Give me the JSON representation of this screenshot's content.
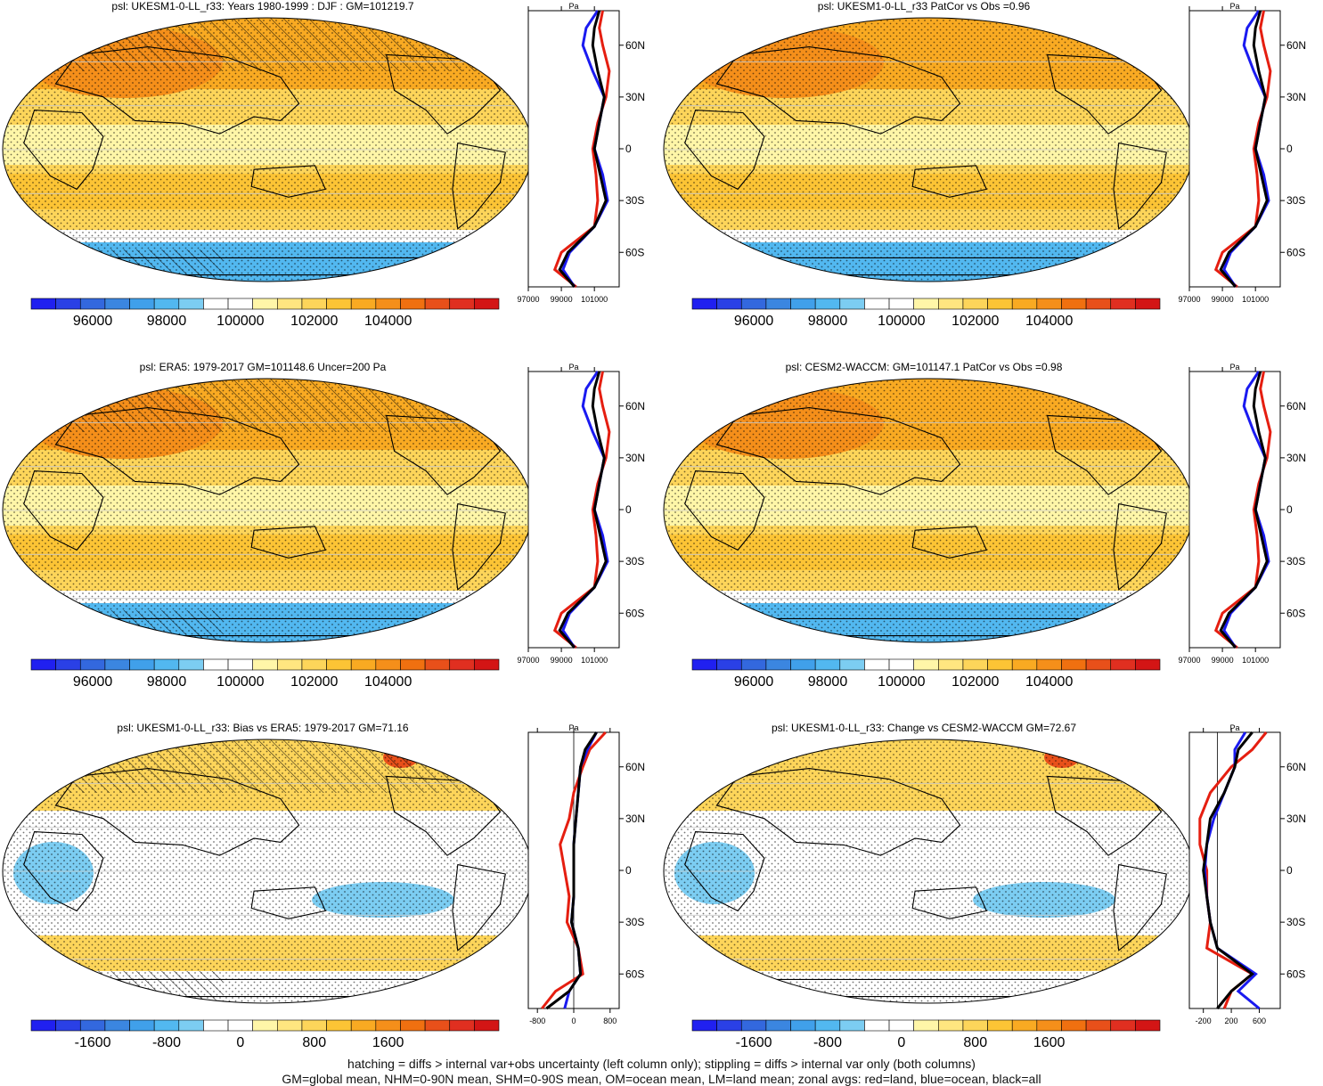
{
  "panels": [
    {
      "title": "psl: UKESM1-0-LL_r33: Years 1980-1999 : DJF : GM=101219.7",
      "scale": "abs",
      "hatch": true,
      "stipple": true
    },
    {
      "title": "psl: UKESM1-0-LL_r33 PatCor vs Obs =0.96",
      "scale": "abs",
      "hatch": false,
      "stipple": true
    },
    {
      "title": "psl: ERA5: 1979-2017 GM=101148.6 Uncer=200 Pa",
      "scale": "abs",
      "hatch": true,
      "stipple": true
    },
    {
      "title": "psl: CESM2-WACCM: GM=101147.1 PatCor vs Obs =0.98",
      "scale": "abs",
      "hatch": false,
      "stipple": true
    },
    {
      "title": "psl: UKESM1-0-LL_r33: Bias vs ERA5: 1979-2017 GM=71.16",
      "scale": "diff",
      "hatch": true,
      "stipple": true
    },
    {
      "title": "psl: UKESM1-0-LL_r33: Change vs CESM2-WACCM GM=72.67",
      "scale": "diff",
      "hatch": false,
      "stipple": true
    }
  ],
  "zonal": {
    "unit": "Pa",
    "lat_ticks": [
      "60N",
      "30N",
      "0",
      "30S",
      "60S"
    ],
    "abs_ticks": [
      "97000",
      "99000",
      "101000"
    ],
    "diff_left_ticks": [
      "-800",
      "0",
      "800"
    ],
    "diff_right_ticks": [
      "-200",
      "200",
      "600"
    ],
    "legend": {
      "land": "#e51e10",
      "ocean": "#1a1af0",
      "all": "#000000"
    }
  },
  "colorbar": {
    "abs_labels": [
      "96000",
      "98000",
      "100000",
      "102000",
      "104000"
    ],
    "diff_labels": [
      "-1600",
      "-800",
      "0",
      "800",
      "1600"
    ],
    "colors": [
      "#2020f0",
      "#2a40e6",
      "#3368de",
      "#3b86e0",
      "#40a0ea",
      "#52b8f0",
      "#7ccdf2",
      "#ffffff",
      "#ffffff",
      "#fff6a8",
      "#ffe680",
      "#fdd55a",
      "#fcc435",
      "#f9aa22",
      "#f58f1a",
      "#f07010",
      "#e8501a",
      "#e02f20",
      "#d31515"
    ]
  },
  "chart_data": {
    "type": "heatmap",
    "variable": "psl",
    "series_zonal": [
      {
        "name": "land",
        "color": "#e51e10"
      },
      {
        "name": "ocean",
        "color": "#1a1af0"
      },
      {
        "name": "all",
        "color": "#000000"
      }
    ],
    "zonal_abs_lat": [
      80,
      70,
      60,
      45,
      30,
      15,
      0,
      -15,
      -30,
      -45,
      -60,
      -70,
      -80
    ],
    "zonal_abs_all": [
      101300,
      101000,
      100900,
      101200,
      101600,
      101300,
      101000,
      101350,
      101700,
      101000,
      99400,
      98900,
      99800
    ],
    "zonal_abs_land": [
      101500,
      101300,
      101500,
      101900,
      101700,
      101200,
      100900,
      101100,
      101200,
      101000,
      99000,
      98600,
      99900
    ],
    "zonal_abs_ocean": [
      101200,
      100500,
      100300,
      100900,
      101600,
      101300,
      101000,
      101500,
      101800,
      101000,
      99500,
      99100,
      99800
    ],
    "zonal_bias_all": [
      500,
      250,
      150,
      100,
      50,
      0,
      0,
      0,
      -50,
      100,
      150,
      -100,
      -600
    ],
    "zonal_bias_land": [
      700,
      350,
      200,
      0,
      -100,
      -300,
      -200,
      -100,
      -150,
      100,
      200,
      -400,
      -700
    ],
    "zonal_bias_ocean": [
      500,
      300,
      150,
      100,
      50,
      0,
      0,
      0,
      -50,
      100,
      150,
      -100,
      -200
    ],
    "zonal_chg_all": [
      500,
      300,
      250,
      100,
      -100,
      -150,
      -200,
      -150,
      -100,
      0,
      500,
      200,
      0
    ],
    "zonal_chg_land": [
      700,
      500,
      200,
      -100,
      -250,
      -250,
      -150,
      -150,
      -100,
      -150,
      500,
      200,
      100
    ],
    "zonal_chg_ocean": [
      400,
      250,
      250,
      100,
      -50,
      -150,
      -180,
      -150,
      -100,
      0,
      550,
      300,
      600
    ]
  },
  "footer": {
    "line1": "hatching = diffs > internal var+obs uncertainty (left column only); stippling = diffs > internal var only (both columns)",
    "line2": "GM=global mean, NHM=0-90N mean, SHM=0-90S mean, OM=ocean mean, LM=land mean; zonal avgs: red=land, blue=ocean, black=all"
  }
}
